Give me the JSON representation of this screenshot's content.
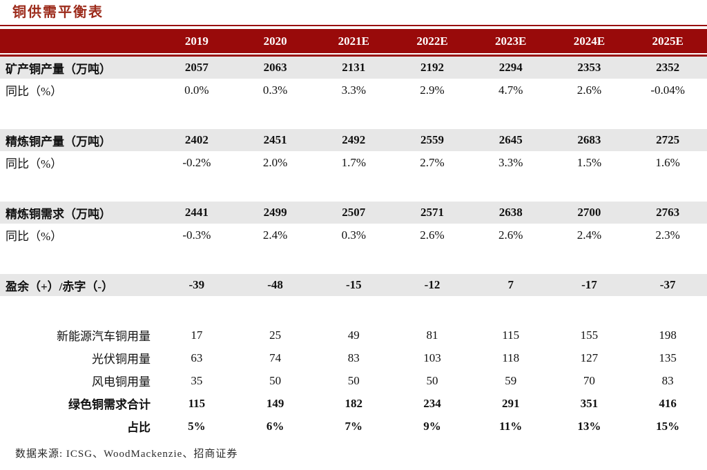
{
  "title": "铜供需平衡表",
  "source_note": "数据来源: ICSG、WoodMackenzie、招商证券",
  "colors": {
    "header_bg": "#990A0A",
    "title_text": "#9C2B1B",
    "shaded_row_bg": "#E7E7E7",
    "header_text": "#FFFFFF",
    "body_text": "#111111"
  },
  "table": {
    "columns": [
      "2019",
      "2020",
      "2021E",
      "2022E",
      "2023E",
      "2024E",
      "2025E"
    ],
    "rows": [
      {
        "name": "mined-copper-output",
        "label": "矿产铜产量（万吨）",
        "values": [
          "2057",
          "2063",
          "2131",
          "2192",
          "2294",
          "2353",
          "2352"
        ],
        "bold": true,
        "shaded": true,
        "align": "left"
      },
      {
        "name": "mined-copper-yoy",
        "label": "同比（%）",
        "values": [
          "0.0%",
          "0.3%",
          "3.3%",
          "2.9%",
          "4.7%",
          "2.6%",
          "-0.04%"
        ],
        "bold": false,
        "shaded": false,
        "align": "left"
      },
      {
        "name": "spacer-1",
        "spacer": true
      },
      {
        "name": "refined-copper-output",
        "label": "精炼铜产量（万吨）",
        "values": [
          "2402",
          "2451",
          "2492",
          "2559",
          "2645",
          "2683",
          "2725"
        ],
        "bold": true,
        "shaded": true,
        "align": "left"
      },
      {
        "name": "refined-copper-output-yoy",
        "label": "同比（%）",
        "values": [
          "-0.2%",
          "2.0%",
          "1.7%",
          "2.7%",
          "3.3%",
          "1.5%",
          "1.6%"
        ],
        "bold": false,
        "shaded": false,
        "align": "left"
      },
      {
        "name": "spacer-2",
        "spacer": true
      },
      {
        "name": "refined-copper-demand",
        "label": "精炼铜需求（万吨）",
        "values": [
          "2441",
          "2499",
          "2507",
          "2571",
          "2638",
          "2700",
          "2763"
        ],
        "bold": true,
        "shaded": true,
        "align": "left"
      },
      {
        "name": "refined-copper-demand-yoy",
        "label": "同比（%）",
        "values": [
          "-0.3%",
          "2.4%",
          "0.3%",
          "2.6%",
          "2.6%",
          "2.4%",
          "2.3%"
        ],
        "bold": false,
        "shaded": false,
        "align": "left"
      },
      {
        "name": "spacer-3",
        "spacer": true
      },
      {
        "name": "surplus-deficit",
        "label": "盈余（+）/赤字（-）",
        "values": [
          "-39",
          "-48",
          "-15",
          "-12",
          "7",
          "-17",
          "-37"
        ],
        "bold": true,
        "shaded": true,
        "align": "left"
      },
      {
        "name": "spacer-4",
        "spacer": true
      },
      {
        "name": "nev-copper-usage",
        "label": "新能源汽车铜用量",
        "values": [
          "17",
          "25",
          "49",
          "81",
          "115",
          "155",
          "198"
        ],
        "bold": false,
        "shaded": false,
        "align": "right"
      },
      {
        "name": "solar-copper-usage",
        "label": "光伏铜用量",
        "values": [
          "63",
          "74",
          "83",
          "103",
          "118",
          "127",
          "135"
        ],
        "bold": false,
        "shaded": false,
        "align": "right"
      },
      {
        "name": "wind-copper-usage",
        "label": "风电铜用量",
        "values": [
          "35",
          "50",
          "50",
          "50",
          "59",
          "70",
          "83"
        ],
        "bold": false,
        "shaded": false,
        "align": "right"
      },
      {
        "name": "green-copper-demand-total",
        "label": "绿色铜需求合计",
        "values": [
          "115",
          "149",
          "182",
          "234",
          "291",
          "351",
          "416"
        ],
        "bold": true,
        "shaded": false,
        "align": "right"
      },
      {
        "name": "green-copper-share",
        "label": "占比",
        "values": [
          "5%",
          "6%",
          "7%",
          "9%",
          "11%",
          "13%",
          "15%"
        ],
        "bold": true,
        "shaded": false,
        "align": "right"
      }
    ]
  }
}
